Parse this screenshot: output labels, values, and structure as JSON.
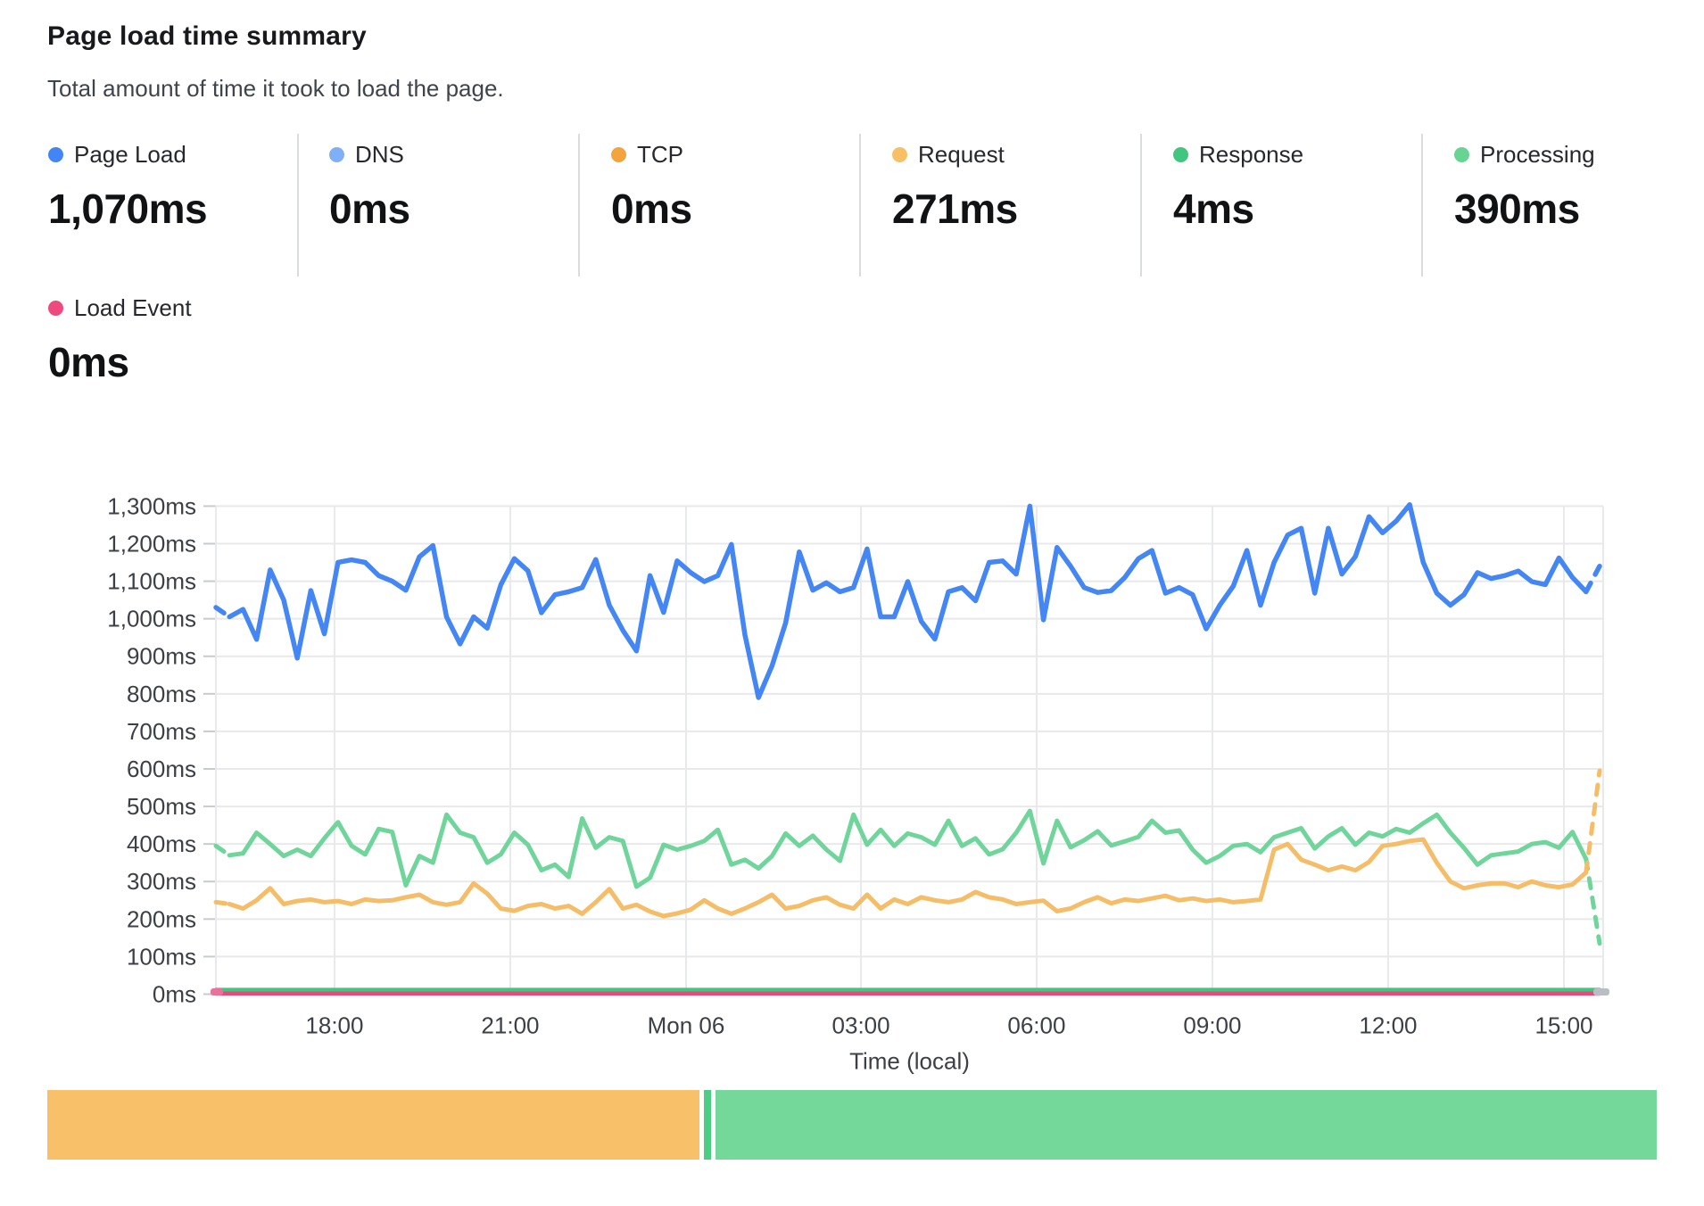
{
  "header": {
    "title": "Page load time summary",
    "subtitle": "Total amount of time it took to load the page."
  },
  "metrics": {
    "items": [
      {
        "label": "Page Load",
        "value": "1,070ms",
        "color": "#4285f4"
      },
      {
        "label": "DNS",
        "value": "0ms",
        "color": "#7fb0f7"
      },
      {
        "label": "TCP",
        "value": "0ms",
        "color": "#f5a33c"
      },
      {
        "label": "Request",
        "value": "271ms",
        "color": "#f7c066"
      },
      {
        "label": "Response",
        "value": "4ms",
        "color": "#41c67f"
      },
      {
        "label": "Processing",
        "value": "390ms",
        "color": "#68d494"
      }
    ],
    "load_event": {
      "label": "Load Event",
      "value": "0ms",
      "color": "#ee4a80"
    }
  },
  "chart_data": {
    "type": "line",
    "title": "Page load time summary",
    "grid": true,
    "legend_position": "top",
    "y_axis": {
      "min": 0,
      "max": 1300,
      "unit": "ms",
      "tick_labels": [
        "0ms",
        "100ms",
        "200ms",
        "300ms",
        "400ms",
        "500ms",
        "600ms",
        "700ms",
        "800ms",
        "900ms",
        "1,000ms",
        "1,100ms",
        "1,200ms",
        "1,300ms"
      ]
    },
    "x_axis": {
      "label": "Time (local)",
      "ticks": [
        {
          "label": "18:00",
          "f": 0.0855
        },
        {
          "label": "21:00",
          "f": 0.2122
        },
        {
          "label": "Mon 06",
          "f": 0.3389
        },
        {
          "label": "03:00",
          "f": 0.465
        },
        {
          "label": "06:00",
          "f": 0.5916
        },
        {
          "label": "09:00",
          "f": 0.7183
        },
        {
          "label": "12:00",
          "f": 0.845
        },
        {
          "label": "15:00",
          "f": 0.9717
        }
      ]
    },
    "series": [
      {
        "name": "Processing",
        "color": "#6fd59a",
        "width": 5,
        "dash_head": 1,
        "dash_tail": 1,
        "values": [
          395,
          370,
          375,
          430,
          400,
          368,
          385,
          368,
          415,
          458,
          395,
          372,
          440,
          432,
          290,
          368,
          350,
          478,
          430,
          418,
          350,
          372,
          430,
          398,
          330,
          345,
          312,
          468,
          390,
          418,
          408,
          286,
          310,
          398,
          385,
          395,
          408,
          438,
          345,
          358,
          335,
          368,
          428,
          395,
          422,
          385,
          355,
          478,
          398,
          438,
          395,
          428,
          418,
          398,
          462,
          395,
          415,
          372,
          386,
          430,
          488,
          348,
          462,
          391,
          410,
          434,
          396,
          407,
          419,
          462,
          430,
          436,
          385,
          350,
          368,
          395,
          400,
          378,
          418,
          430,
          442,
          388,
          420,
          442,
          398,
          430,
          420,
          440,
          430,
          455,
          478,
          430,
          390,
          345,
          370,
          375,
          380,
          400,
          405,
          390,
          432,
          360,
          135
        ]
      },
      {
        "name": "Request",
        "color": "#f5bd68",
        "width": 5,
        "dash_head": 1,
        "dash_tail": 1,
        "values": [
          245,
          240,
          228,
          250,
          282,
          240,
          248,
          252,
          245,
          248,
          240,
          252,
          248,
          250,
          258,
          265,
          245,
          238,
          245,
          295,
          268,
          228,
          222,
          235,
          240,
          228,
          235,
          214,
          245,
          280,
          228,
          238,
          220,
          208,
          215,
          225,
          250,
          228,
          214,
          228,
          245,
          265,
          228,
          235,
          250,
          258,
          238,
          228,
          265,
          228,
          252,
          240,
          258,
          250,
          245,
          252,
          272,
          258,
          252,
          240,
          245,
          249,
          221,
          228,
          245,
          258,
          242,
          252,
          248,
          255,
          262,
          250,
          255,
          248,
          252,
          245,
          248,
          252,
          385,
          400,
          358,
          345,
          330,
          340,
          330,
          352,
          395,
          400,
          408,
          412,
          350,
          300,
          282,
          290,
          295,
          295,
          285,
          300,
          290,
          285,
          292,
          324,
          595
        ]
      },
      {
        "name": "Page Load",
        "color": "#4487f4",
        "width": 5.5,
        "dash_head": 1,
        "dash_tail": 1,
        "values": [
          1030,
          1005,
          1025,
          945,
          1130,
          1050,
          895,
          1075,
          960,
          1150,
          1157,
          1150,
          1115,
          1100,
          1076,
          1165,
          1195,
          1005,
          933,
          1005,
          975,
          1090,
          1160,
          1128,
          1016,
          1064,
          1072,
          1083,
          1158,
          1036,
          969,
          914,
          1115,
          1017,
          1154,
          1123,
          1099,
          1115,
          1198,
          957,
          790,
          875,
          989,
          1178,
          1076,
          1096,
          1072,
          1083,
          1186,
          1005,
          1005,
          1099,
          993,
          946,
          1072,
          1083,
          1048,
          1150,
          1154,
          1119,
          1300,
          997,
          1190,
          1140,
          1083,
          1070,
          1075,
          1110,
          1160,
          1182,
          1068,
          1083,
          1064,
          973,
          1036,
          1087,
          1182,
          1036,
          1150,
          1223,
          1241,
          1068,
          1241,
          1119,
          1166,
          1272,
          1229,
          1260,
          1304,
          1150,
          1068,
          1036,
          1064,
          1123,
          1107,
          1115,
          1127,
          1099,
          1091,
          1162,
          1110,
          1072,
          1140
        ]
      },
      {
        "name": "Response",
        "color": "#41c67f",
        "width": 4,
        "const_value": 12
      },
      {
        "name": "Load Event",
        "color": "#e8487e",
        "width": 5,
        "const_value": 2
      }
    ]
  },
  "breakdown_bar": {
    "segments": [
      {
        "name": "Request",
        "color": "#f7c069",
        "pct": 40.6
      },
      {
        "name": "Response",
        "color": "#4bcd83",
        "pct": 0.45
      },
      {
        "name": "Processing",
        "color": "#74d89a",
        "pct": 58.55
      }
    ]
  }
}
